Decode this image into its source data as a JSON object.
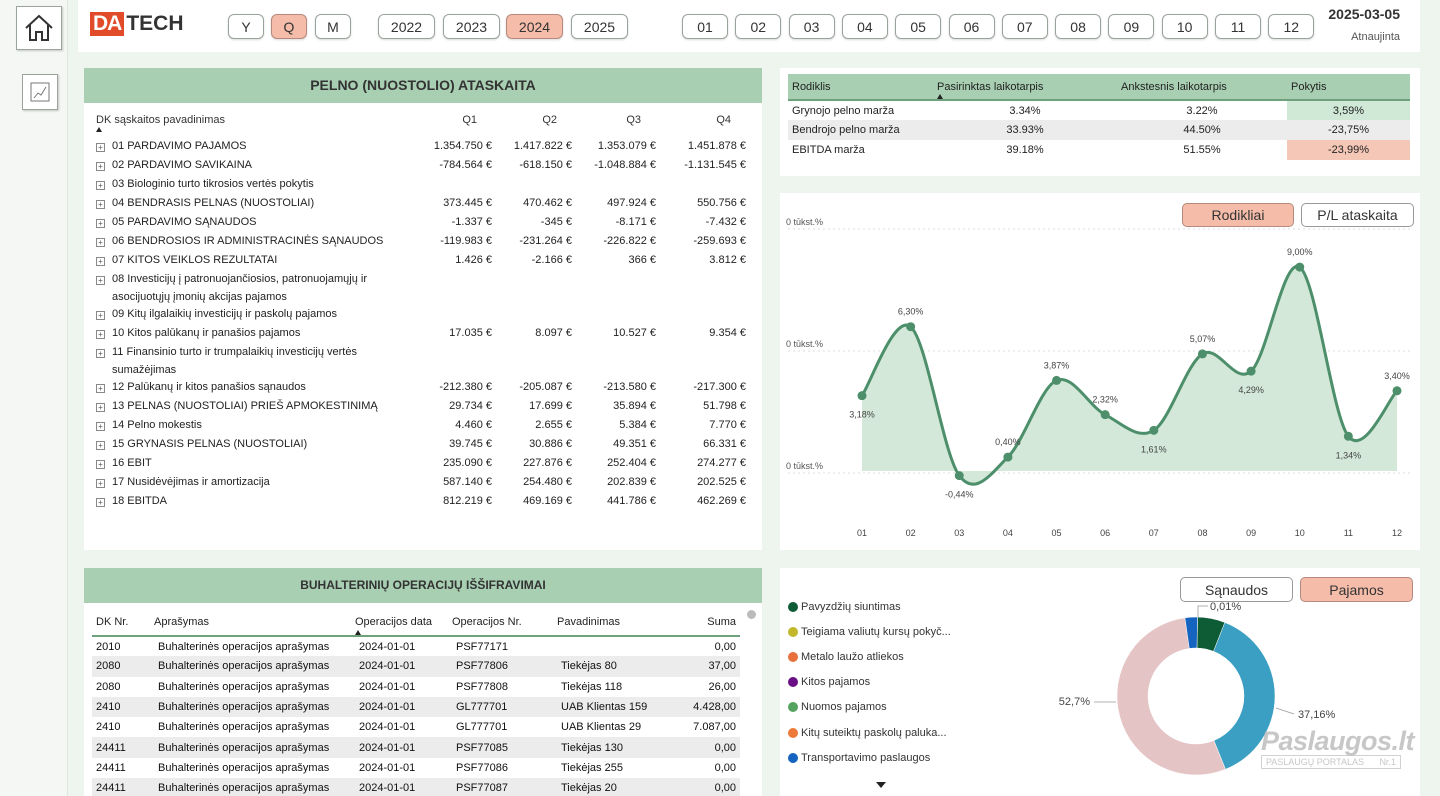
{
  "logo": {
    "da": "DA",
    "tech": "TECH"
  },
  "period_buttons": [
    {
      "label": "Y",
      "active": false
    },
    {
      "label": "Q",
      "active": true
    },
    {
      "label": "M",
      "active": false
    }
  ],
  "year_buttons": [
    {
      "label": "2022",
      "active": false
    },
    {
      "label": "2023",
      "active": false
    },
    {
      "label": "2024",
      "active": true
    },
    {
      "label": "2025",
      "active": false
    }
  ],
  "month_buttons": [
    "01",
    "02",
    "03",
    "04",
    "05",
    "06",
    "07",
    "08",
    "09",
    "10",
    "11",
    "12"
  ],
  "updated": {
    "date": "2025-03-05",
    "label": "Atnaujinta"
  },
  "pl": {
    "title": "PELNO (NUOSTOLIO) ATASKAITA",
    "col_name": "DK sąskaitos pavadinimas",
    "quarters": [
      "Q1",
      "Q2",
      "Q3",
      "Q4"
    ],
    "rows": [
      {
        "name": "01 PARDAVIMO PAJAMOS",
        "v": [
          "1.354.750 €",
          "1.417.822 €",
          "1.353.079 €",
          "1.451.878 €"
        ]
      },
      {
        "name": "02 PARDAVIMO SAVIKAINA",
        "v": [
          "-784.564 €",
          "-618.150 €",
          "-1.048.884 €",
          "-1.131.545 €"
        ]
      },
      {
        "name": "03 Biologinio turto tikrosios vertės pokytis",
        "v": [
          "",
          "",
          "",
          ""
        ]
      },
      {
        "name": "04 BENDRASIS PELNAS (NUOSTOLIAI)",
        "v": [
          "373.445 €",
          "470.462 €",
          "497.924 €",
          "550.756 €"
        ]
      },
      {
        "name": "05 PARDAVIMO SĄNAUDOS",
        "v": [
          "-1.337 €",
          "-345 €",
          "-8.171 €",
          "-7.432 €"
        ]
      },
      {
        "name": "06 BENDROSIOS IR ADMINISTRACINĖS SĄNAUDOS",
        "v": [
          "-119.983 €",
          "-231.264 €",
          "-226.822 €",
          "-259.693 €"
        ]
      },
      {
        "name": "07 KITOS VEIKLOS REZULTATAI",
        "v": [
          "1.426 €",
          "-2.166 €",
          "366 €",
          "3.812 €"
        ]
      },
      {
        "name": "08 Investicijų į patronuojančiosios, patronuojamųjų ir asocijuotųjų įmonių akcijas pajamos",
        "v": [
          "",
          "",
          "",
          ""
        ]
      },
      {
        "name": "09 Kitų ilgalaikių investicijų ir paskolų pajamos",
        "v": [
          "",
          "",
          "",
          ""
        ]
      },
      {
        "name": "10 Kitos palūkanų ir panašios pajamos",
        "v": [
          "17.035 €",
          "8.097 €",
          "10.527 €",
          "9.354 €"
        ]
      },
      {
        "name": "11 Finansinio turto ir trumpalaikių investicijų vertės sumažėjimas",
        "v": [
          "",
          "",
          "",
          ""
        ]
      },
      {
        "name": "12 Palūkanų ir kitos panašios sąnaudos",
        "v": [
          "-212.380 €",
          "-205.087 €",
          "-213.580 €",
          "-217.300 €"
        ]
      },
      {
        "name": "13 PELNAS (NUOSTOLIAI) PRIEŠ APMOKESTINIMĄ",
        "v": [
          "29.734 €",
          "17.699 €",
          "35.894 €",
          "51.798 €"
        ]
      },
      {
        "name": "14 Pelno mokestis",
        "v": [
          "4.460 €",
          "2.655 €",
          "5.384 €",
          "7.770 €"
        ]
      },
      {
        "name": "15 GRYNASIS PELNAS (NUOSTOLIAI)",
        "v": [
          "39.745 €",
          "30.886 €",
          "49.351 €",
          "66.331 €"
        ]
      },
      {
        "name": "16 EBIT",
        "v": [
          "235.090 €",
          "227.876 €",
          "252.404 €",
          "274.277 €"
        ]
      },
      {
        "name": "17 Nusidėvėjimas ir amortizacija",
        "v": [
          "587.140 €",
          "254.480 €",
          "202.839 €",
          "202.525 €"
        ]
      },
      {
        "name": "18 EBITDA",
        "v": [
          "812.219 €",
          "469.169 €",
          "441.786 €",
          "462.269 €"
        ]
      }
    ]
  },
  "ratios": {
    "headers": [
      "Rodiklis",
      "Pasirinktas laikotarpis",
      "Ankstesnis laikotarpis",
      "Pokytis"
    ],
    "rows": [
      {
        "name": "Grynojo pelno marža",
        "cur": "3.34%",
        "prev": "3.22%",
        "chg": "3,59%",
        "status": "good"
      },
      {
        "name": "Bendrojo pelno marža",
        "cur": "33.93%",
        "prev": "44.50%",
        "chg": "-23,75%",
        "status": "bad"
      },
      {
        "name": "EBITDA marža",
        "cur": "39.18%",
        "prev": "51.55%",
        "chg": "-23,99%",
        "status": "bad"
      }
    ]
  },
  "line_toggle": {
    "a": "Rodikliai",
    "b": "P/L ataskaita",
    "active": "a"
  },
  "chart_data": {
    "type": "area",
    "x": [
      "01",
      "02",
      "03",
      "04",
      "05",
      "06",
      "07",
      "08",
      "09",
      "10",
      "11",
      "12"
    ],
    "values": [
      3.18,
      6.3,
      -0.44,
      0.4,
      3.87,
      2.32,
      1.61,
      5.07,
      4.29,
      9.0,
      1.34,
      3.4
    ],
    "labels": [
      "3,18%",
      "6,30%",
      "-0,44%",
      "0,40%",
      "3,87%",
      "2,32%",
      "1,61%",
      "5,07%",
      "4,29%",
      "9,00%",
      "1,34%",
      "3,40%"
    ],
    "y_ticks": [
      "0 tūkst.%",
      "0 tūkst.%",
      "0 tūkst.%"
    ],
    "color": "#4c8f6a",
    "fill": "#d3e8d9"
  },
  "ops": {
    "title": "BUHALTERINIŲ OPERACIJŲ IŠŠIFRAVIMAI",
    "headers": [
      "DK Nr.",
      "Aprašymas",
      "Operacijos data",
      "Operacijos Nr.",
      "Pavadinimas",
      "Suma"
    ],
    "rows": [
      [
        "2010",
        "Buhalterinės operacijos aprašymas",
        "2024-01-01",
        "PSF77171",
        "",
        "0,00"
      ],
      [
        "2080",
        "Buhalterinės operacijos aprašymas",
        "2024-01-01",
        "PSF77806",
        "Tiekėjas 80",
        "37,00"
      ],
      [
        "2080",
        "Buhalterinės operacijos aprašymas",
        "2024-01-01",
        "PSF77808",
        "Tiekėjas 118",
        "26,00"
      ],
      [
        "2410",
        "Buhalterinės operacijos aprašymas",
        "2024-01-01",
        "GL777701",
        "UAB Klientas 159",
        "4.428,00"
      ],
      [
        "2410",
        "Buhalterinės operacijos aprašymas",
        "2024-01-01",
        "GL777701",
        "UAB Klientas 29",
        "7.087,00"
      ],
      [
        "24411",
        "Buhalterinės operacijos aprašymas",
        "2024-01-01",
        "PSF77085",
        "Tiekėjas 130",
        "0,00"
      ],
      [
        "24411",
        "Buhalterinės operacijos aprašymas",
        "2024-01-01",
        "PSF77086",
        "Tiekėjas 255",
        "0,00"
      ],
      [
        "24411",
        "Buhalterinės operacijos aprašymas",
        "2024-01-01",
        "PSF77087",
        "Tiekėjas 20",
        "0,00"
      ]
    ]
  },
  "donut_toggle": {
    "a": "Sąnaudos",
    "b": "Pajamos",
    "active": "b"
  },
  "donut": {
    "legend": [
      {
        "label": "Pavyzdžių siuntimas",
        "color": "#0d5c36"
      },
      {
        "label": "Teigiama valiutų kursų pokyč...",
        "color": "#c2b82a"
      },
      {
        "label": "Metalo laužo atliekos",
        "color": "#e8703a"
      },
      {
        "label": "Kitos pajamos",
        "color": "#6a0f86"
      },
      {
        "label": "Nuomos pajamos",
        "color": "#55a35e"
      },
      {
        "label": "Kitų suteiktų paskolų paluka...",
        "color": "#ee7a3a"
      },
      {
        "label": "Transportavimo paslaugos",
        "color": "#1565c0"
      }
    ],
    "slices": [
      {
        "value": 0.01,
        "color": "#1565c0",
        "label": "0,01%"
      },
      {
        "value": 5.5,
        "color": "#0d5c36",
        "label": ""
      },
      {
        "value": 37.16,
        "color": "#3a9fc2",
        "label": "37,16%"
      },
      {
        "value": 52.7,
        "color": "#e5c4c6",
        "label": "52,7%"
      },
      {
        "value": 2.5,
        "color": "#1565c0",
        "label": ""
      }
    ]
  },
  "watermark": {
    "brand": "Paslaugos.lt",
    "sub": "PASLAUGŲ PORTALAS",
    "nr": "Nr.1"
  }
}
